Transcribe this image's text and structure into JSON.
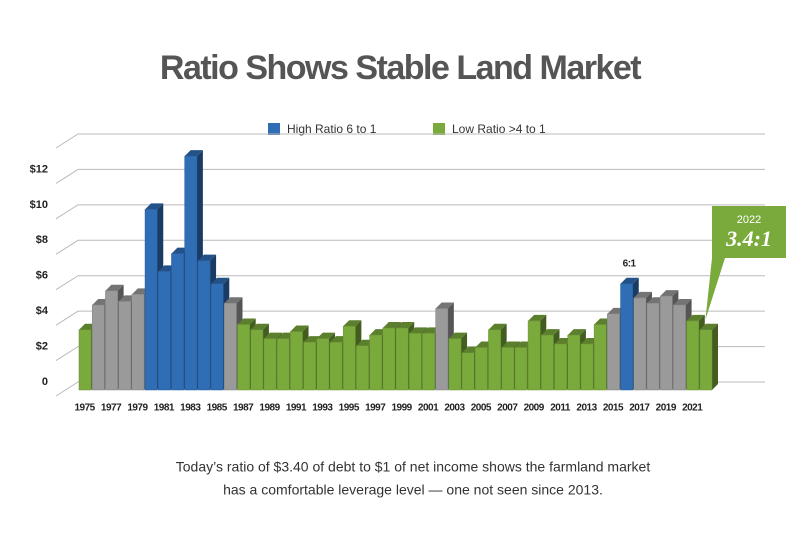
{
  "chart_data": {
    "type": "bar3d",
    "title": "Ratio Shows Stable Land Market",
    "legend": [
      {
        "name": "High Ratio 6 to 1",
        "color": "#2f6db5"
      },
      {
        "name": "Low Ratio >4 to 1",
        "color": "#7aa93c"
      }
    ],
    "categories": [
      "1975",
      null,
      "1977",
      null,
      "1979",
      null,
      "1981",
      null,
      "1983",
      null,
      "1985",
      null,
      "1987",
      null,
      "1989",
      null,
      "1991",
      null,
      "1993",
      null,
      "1995",
      null,
      "1997",
      null,
      "1999",
      null,
      "2001",
      null,
      "2003",
      null,
      "2005",
      null,
      "2007",
      null,
      "2009",
      null,
      "2011",
      null,
      "2013",
      null,
      "2015",
      null,
      "2017",
      null,
      "2019",
      null,
      "2021",
      null
    ],
    "values": [
      3.4,
      4.8,
      5.6,
      5.0,
      5.4,
      10.2,
      6.7,
      7.7,
      13.2,
      7.3,
      6.0,
      4.9,
      3.7,
      3.4,
      2.9,
      2.9,
      3.3,
      2.7,
      2.9,
      2.7,
      3.6,
      2.5,
      3.1,
      3.5,
      3.5,
      3.2,
      3.2,
      4.6,
      2.9,
      2.1,
      2.4,
      3.4,
      2.4,
      2.4,
      3.9,
      3.1,
      2.6,
      3.1,
      2.6,
      3.7,
      4.3,
      6.0,
      5.2,
      4.9,
      5.3,
      4.8,
      3.9,
      3.4
    ],
    "colors": [
      "#7aa93c",
      "#9a9a9a",
      "#9a9a9a",
      "#9a9a9a",
      "#9a9a9a",
      "#2f6db5",
      "#2f6db5",
      "#2f6db5",
      "#2f6db5",
      "#2f6db5",
      "#2f6db5",
      "#9a9a9a",
      "#7aa93c",
      "#7aa93c",
      "#7aa93c",
      "#7aa93c",
      "#7aa93c",
      "#7aa93c",
      "#7aa93c",
      "#7aa93c",
      "#7aa93c",
      "#7aa93c",
      "#7aa93c",
      "#7aa93c",
      "#7aa93c",
      "#7aa93c",
      "#7aa93c",
      "#9a9a9a",
      "#7aa93c",
      "#7aa93c",
      "#7aa93c",
      "#7aa93c",
      "#7aa93c",
      "#7aa93c",
      "#7aa93c",
      "#7aa93c",
      "#7aa93c",
      "#7aa93c",
      "#7aa93c",
      "#7aa93c",
      "#9a9a9a",
      "#2f6db5",
      "#9a9a9a",
      "#9a9a9a",
      "#9a9a9a",
      "#9a9a9a",
      "#7aa93c",
      "#7aa93c"
    ],
    "ylim": [
      0,
      14
    ],
    "yticks": [
      0,
      {
        "value": 2,
        "label": "$2"
      },
      {
        "value": 4,
        "label": "$4"
      },
      {
        "value": 6,
        "label": "$6"
      },
      {
        "value": 8,
        "label": "$8"
      },
      {
        "value": 10,
        "label": "$10"
      },
      {
        "value": 12,
        "label": "$12"
      },
      14
    ],
    "grid": true,
    "annotations": [
      {
        "text": "6:1",
        "at": 41
      }
    ],
    "callout": {
      "label": "2022",
      "text": "3.4:1",
      "at": 47,
      "color": "#7aa93c"
    },
    "caption": [
      "Today’s ratio of $3.40 of debt to $1 of net income shows the farmland market",
      "has a comfortable leverage level — one not seen since 2013."
    ]
  }
}
